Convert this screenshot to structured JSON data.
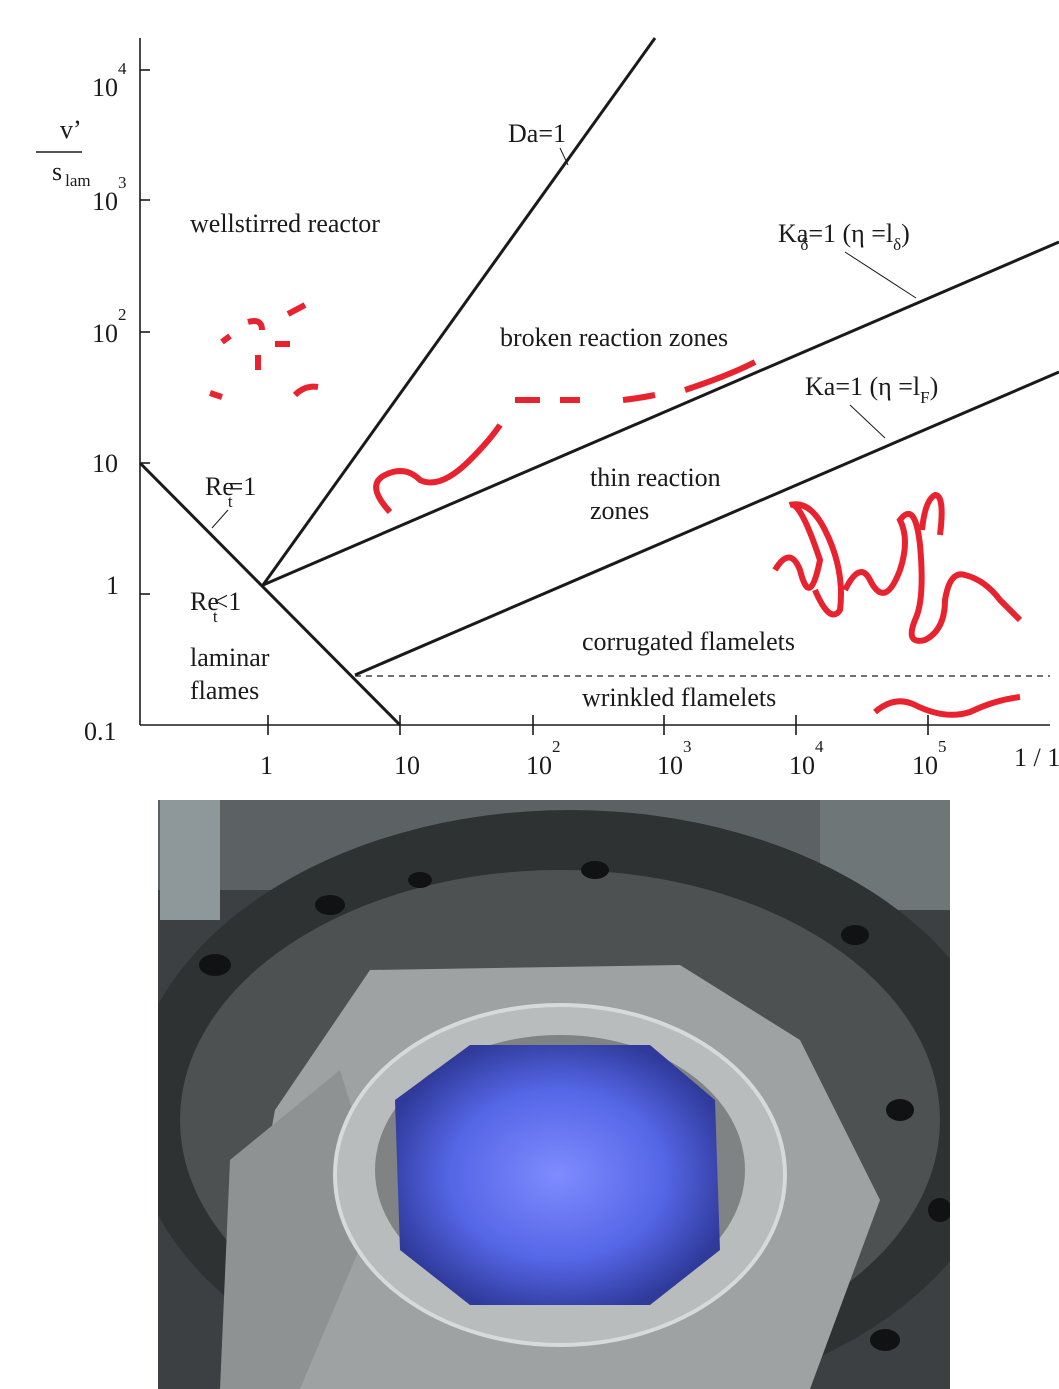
{
  "axes": {
    "y_label": {
      "numerator": "v’",
      "denominator": "s",
      "denominator_sub": "lam"
    },
    "y_ticks": [
      {
        "base": "10",
        "exp": "4"
      },
      {
        "base": "10",
        "exp": "3"
      },
      {
        "base": "10",
        "exp": "2"
      },
      {
        "base": "10"
      },
      {
        "base": "1"
      },
      {
        "base": "0.1"
      }
    ],
    "x_ticks": [
      {
        "base": "1"
      },
      {
        "base": "10"
      },
      {
        "base": "10",
        "exp": "2"
      },
      {
        "base": "10",
        "exp": "3"
      },
      {
        "base": "10",
        "exp": "4"
      },
      {
        "base": "10",
        "exp": "5"
      }
    ],
    "x_label": "1 / 1"
  },
  "lines": {
    "da": "Da=1",
    "ka_delta": {
      "a": "Ka",
      "a_sub": "δ",
      "b": "=1 (η =l",
      "b_sub": "δ",
      "c": ")"
    },
    "ka_f": {
      "a": "Ka=1 (η =l",
      "a_sub": "F",
      "b": ")"
    },
    "re_eq": {
      "a": "Re",
      "a_sub": "t",
      "b": "=1"
    },
    "re_lt": {
      "a": "Re",
      "a_sub": "t",
      "b": "<1"
    }
  },
  "regions": {
    "wellstirred": "wellstirred reactor",
    "broken": "broken reaction zones",
    "thin": [
      "thin reaction",
      "zones"
    ],
    "corrugated": "corrugated flamelets",
    "wrinkled": "wrinkled flamelets",
    "laminar": [
      "laminar",
      "flames"
    ]
  }
}
